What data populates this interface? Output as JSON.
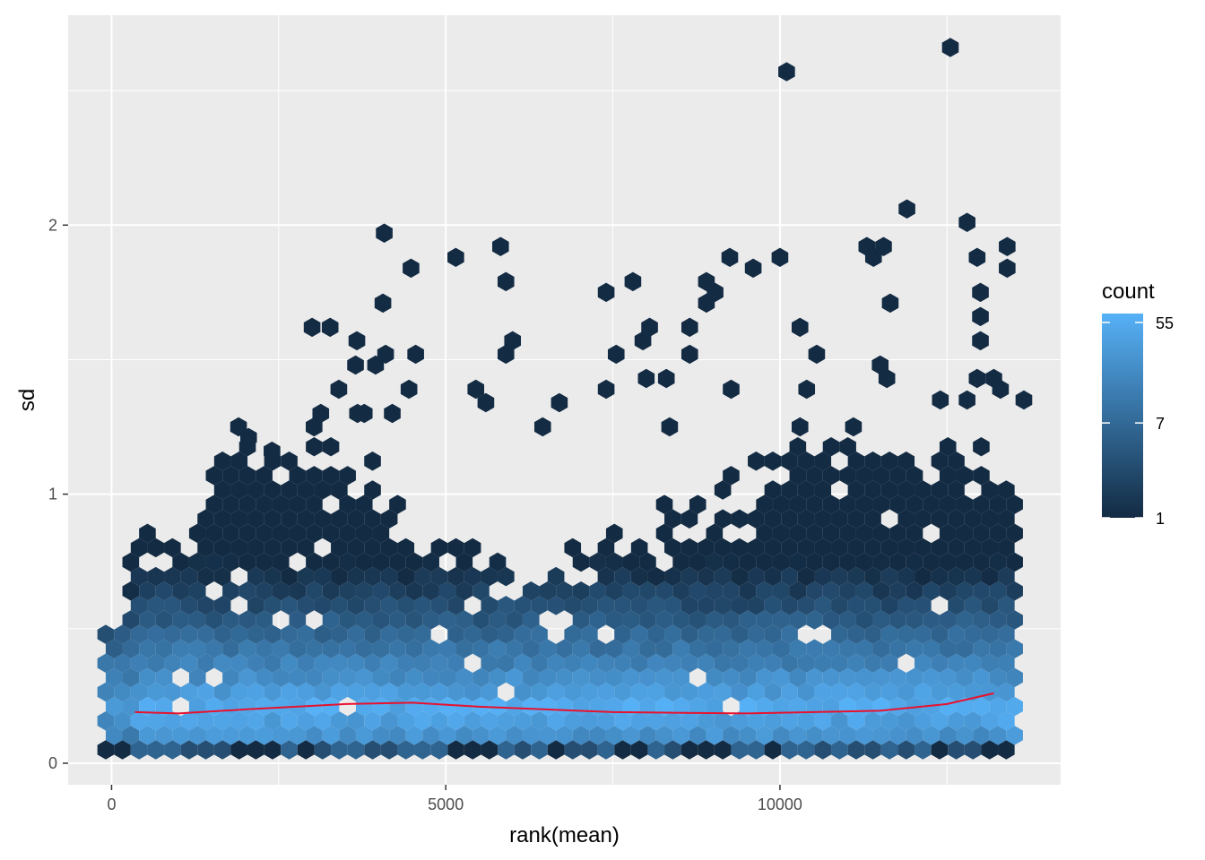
{
  "chart_data": {
    "type": "hexbin",
    "xlabel": "rank(mean)",
    "ylabel": "sd",
    "xlim": [
      -650,
      14200
    ],
    "ylim": [
      -0.08,
      2.78
    ],
    "x_ticks": [
      0,
      5000,
      10000
    ],
    "x_tick_labels": [
      "0",
      "5000",
      "10000"
    ],
    "y_ticks": [
      0,
      1,
      2
    ],
    "y_tick_labels": [
      "0",
      "1",
      "2"
    ],
    "grid": true,
    "panel_background": "#ebebeb",
    "legend": {
      "title": "count",
      "placement": "right",
      "scale": "log",
      "range": [
        1,
        66
      ],
      "breaks": [
        1,
        7,
        55
      ],
      "break_labels": [
        "1",
        "7",
        "55"
      ],
      "low_color": "#132b43",
      "high_color": "#56b1f7"
    },
    "hex_cells": [
      [
        4080,
        1.97,
        1
      ],
      [
        5150,
        1.88,
        1
      ],
      [
        5820,
        1.92,
        1
      ],
      [
        5900,
        1.79,
        1
      ],
      [
        4480,
        1.84,
        1
      ],
      [
        4060,
        1.71,
        1
      ],
      [
        7400,
        1.75,
        1
      ],
      [
        7800,
        1.79,
        1
      ],
      [
        8900,
        1.79,
        1
      ],
      [
        9250,
        1.88,
        1
      ],
      [
        9600,
        1.84,
        1
      ],
      [
        10000,
        1.88,
        1
      ],
      [
        11300,
        1.92,
        1
      ],
      [
        11400,
        1.88,
        1
      ],
      [
        11550,
        1.92,
        1
      ],
      [
        11900,
        2.06,
        1
      ],
      [
        12800,
        2.01,
        1
      ],
      [
        12950,
        1.88,
        1
      ],
      [
        13400,
        1.92,
        1
      ],
      [
        13400,
        1.84,
        1
      ],
      [
        13000,
        1.75,
        1
      ],
      [
        13000,
        1.66,
        1
      ],
      [
        13000,
        1.57,
        1
      ],
      [
        11650,
        1.71,
        1
      ],
      [
        10100,
        2.57,
        1
      ],
      [
        12550,
        2.66,
        1
      ],
      [
        3000,
        1.62,
        1
      ],
      [
        3270,
        1.62,
        1
      ],
      [
        3670,
        1.57,
        1
      ],
      [
        3650,
        1.48,
        1
      ],
      [
        3950,
        1.48,
        1
      ],
      [
        4100,
        1.52,
        1
      ],
      [
        4550,
        1.52,
        1
      ],
      [
        5900,
        1.52,
        1
      ],
      [
        6000,
        1.57,
        1
      ],
      [
        8050,
        1.62,
        1
      ],
      [
        7950,
        1.57,
        1
      ],
      [
        8650,
        1.62,
        1
      ],
      [
        10300,
        1.62,
        1
      ],
      [
        10550,
        1.52,
        1
      ],
      [
        11500,
        1.48,
        1
      ],
      [
        11600,
        1.43,
        1
      ],
      [
        12950,
        1.43,
        1
      ],
      [
        13200,
        1.43,
        1
      ],
      [
        13300,
        1.39,
        1
      ],
      [
        8900,
        1.71,
        1
      ],
      [
        9030,
        1.75,
        1
      ],
      [
        7550,
        1.52,
        1
      ],
      [
        8000,
        1.43,
        1
      ],
      [
        8300,
        1.43,
        1
      ],
      [
        8650,
        1.52,
        1
      ],
      [
        7400,
        1.39,
        1
      ],
      [
        10400,
        1.39,
        1
      ],
      [
        13650,
        1.35,
        1
      ],
      [
        12400,
        1.35,
        1
      ],
      [
        12800,
        1.35,
        1
      ],
      [
        9270,
        1.39,
        1
      ],
      [
        4450,
        1.39,
        1
      ],
      [
        5450,
        1.39,
        1
      ],
      [
        5600,
        1.34,
        1
      ],
      [
        6700,
        1.34,
        1
      ],
      [
        3400,
        1.39,
        1
      ],
      [
        3780,
        1.3,
        1
      ],
      [
        3680,
        1.3,
        1
      ],
      [
        4200,
        1.3,
        1
      ],
      [
        3030,
        1.25,
        1
      ],
      [
        3130,
        1.3,
        1
      ],
      [
        1900,
        1.25,
        1
      ],
      [
        2050,
        1.21,
        1
      ],
      [
        2400,
        1.16,
        1
      ],
      [
        6450,
        1.25,
        1
      ],
      [
        8350,
        1.25,
        1
      ],
      [
        10300,
        1.25,
        1
      ],
      [
        11100,
        1.25,
        1
      ]
    ]
  }
}
